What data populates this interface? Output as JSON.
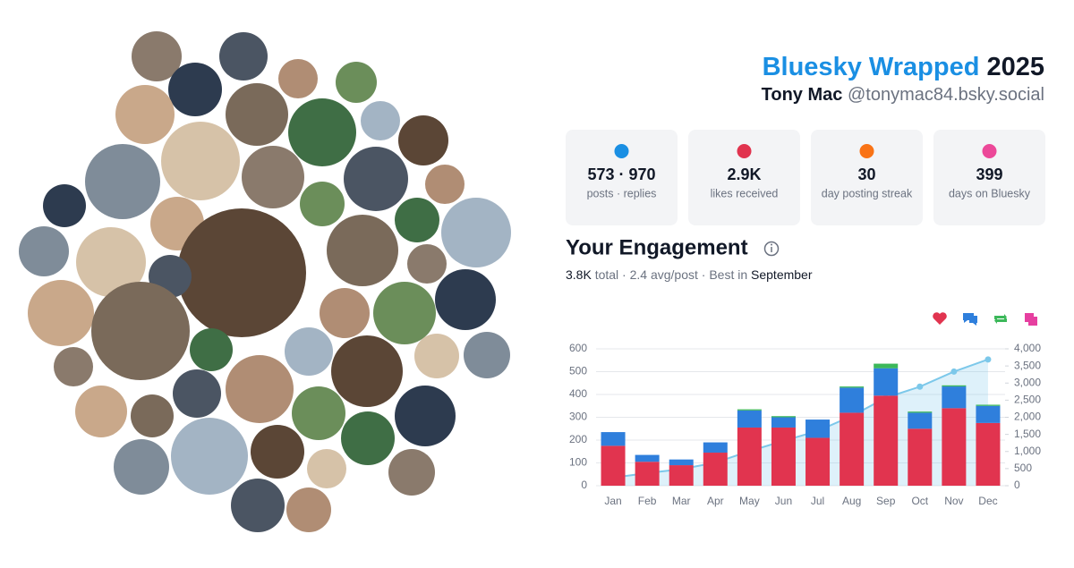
{
  "header": {
    "title": "Bluesky Wrapped",
    "year": "2025",
    "name": "Tony Mac",
    "handle": "@tonymac84.bsky.social"
  },
  "stats": [
    {
      "value": "573 · 970",
      "label": "posts · replies"
    },
    {
      "value": "2.9K",
      "label": "likes received"
    },
    {
      "value": "30",
      "label": "day posting streak"
    },
    {
      "value": "399",
      "label": "days on Bluesky"
    }
  ],
  "engagement": {
    "title": "Your Engagement",
    "total": "3.8K",
    "summary": "total · 2.4 avg/post · Best in",
    "best": "September"
  },
  "chart_data": {
    "type": "bar",
    "stacked": true,
    "grid": true,
    "categories": [
      "Jan",
      "Feb",
      "Mar",
      "Apr",
      "May",
      "Jun",
      "Jul",
      "Aug",
      "Sep",
      "Oct",
      "Nov",
      "Dec"
    ],
    "series": [
      {
        "color": "#e1344f",
        "values": [
          175,
          105,
          90,
          145,
          255,
          255,
          210,
          320,
          395,
          250,
          340,
          275
        ]
      },
      {
        "color": "#2f7fdc",
        "values": [
          60,
          30,
          25,
          45,
          75,
          45,
          80,
          110,
          120,
          70,
          95,
          75
        ]
      },
      {
        "color": "#3cb85a",
        "values": [
          0,
          0,
          0,
          0,
          5,
          5,
          0,
          5,
          20,
          5,
          5,
          5
        ]
      },
      {
        "color": "#e63fa0",
        "values": [
          0,
          0,
          0,
          0,
          0,
          0,
          0,
          0,
          0,
          0,
          0,
          0
        ]
      },
      {
        "type": "line",
        "axis": "y2",
        "color": "#7cc8ea",
        "values": [
          235,
          370,
          485,
          675,
          1010,
          1310,
          1600,
          2035,
          2570,
          2895,
          3335,
          3690
        ]
      }
    ],
    "ylim": [
      0,
      600
    ],
    "yticks": [
      0,
      100,
      200,
      300,
      400,
      500,
      600
    ],
    "y2lim": [
      0,
      4000
    ],
    "y2ticks": [
      0,
      500,
      {
        "value": 1000,
        "label": "1,000"
      },
      {
        "value": 1500,
        "label": "1,500"
      },
      {
        "value": 2000,
        "label": "2,000"
      },
      {
        "value": 2500,
        "label": "2,500"
      },
      {
        "value": 3000,
        "label": "3,000"
      },
      {
        "value": 3500,
        "label": "3,500"
      },
      {
        "value": 4000,
        "label": "4,000"
      }
    ]
  }
}
